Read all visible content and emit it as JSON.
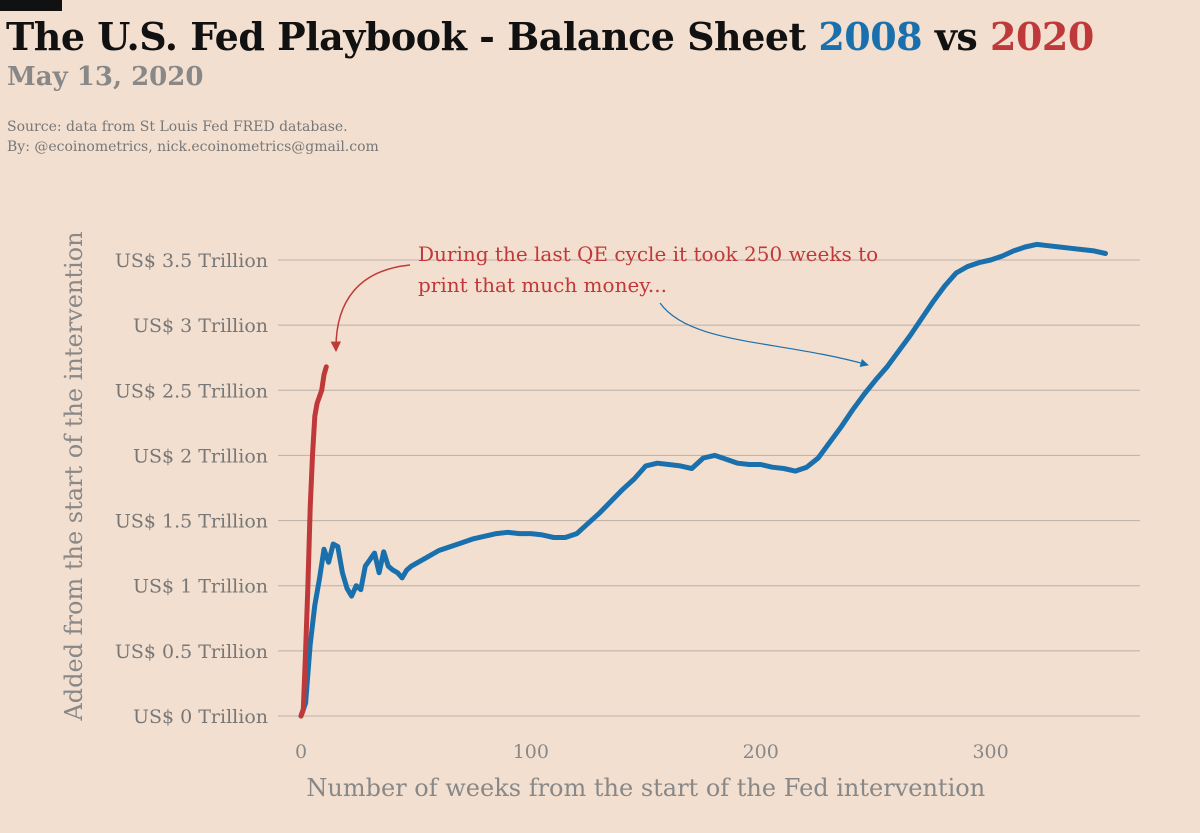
{
  "header": {
    "title_prefix": "The U.S. Fed Playbook - Balance Sheet ",
    "title_year_a": "2008",
    "title_vs": " vs ",
    "title_year_b": "2020",
    "date": "May 13, 2020",
    "source_line1": "Source: data from  St Louis Fed FRED database.",
    "source_line2": "By: @ecoinometrics, nick.ecoinometrics@gmail.com"
  },
  "colors": {
    "series_2008": "#1a70ad",
    "series_2020": "#c0393a",
    "background": "#f3dfcf",
    "gridline": "#b9b0a8"
  },
  "chart_data": {
    "type": "line",
    "title": "The U.S. Fed Playbook - Balance Sheet 2008 vs 2020",
    "xlabel": "Number of weeks from the start of the Fed intervention",
    "ylabel": "Added from the start of the intervention",
    "xlim": [
      -10,
      365
    ],
    "ylim": [
      0,
      3.5
    ],
    "grid": true,
    "x_ticks": [
      0,
      100,
      200,
      300
    ],
    "y_ticks": [
      0,
      0.5,
      1,
      1.5,
      2,
      2.5,
      3,
      3.5
    ],
    "y_tick_labels": [
      "US$ 0 Trillion",
      "US$ 0.5 Trillion",
      "US$ 1 Trillion",
      "US$ 1.5 Trillion",
      "US$ 2 Trillion",
      "US$ 2.5 Trillion",
      "US$ 3 Trillion",
      "US$ 3.5 Trillion"
    ],
    "series": [
      {
        "name": "2008",
        "x": [
          0,
          2,
          4,
          6,
          8,
          10,
          12,
          14,
          16,
          18,
          20,
          22,
          24,
          26,
          28,
          30,
          32,
          34,
          36,
          38,
          40,
          42,
          44,
          46,
          48,
          50,
          55,
          60,
          65,
          70,
          75,
          80,
          85,
          90,
          95,
          100,
          105,
          110,
          115,
          120,
          125,
          130,
          135,
          140,
          145,
          150,
          155,
          160,
          165,
          170,
          175,
          180,
          185,
          190,
          195,
          200,
          205,
          210,
          215,
          220,
          225,
          230,
          235,
          240,
          245,
          250,
          255,
          260,
          265,
          270,
          275,
          280,
          285,
          290,
          295,
          300,
          305,
          310,
          315,
          320,
          325,
          330,
          335,
          340,
          345,
          350
        ],
        "values": [
          0,
          0.1,
          0.55,
          0.85,
          1.05,
          1.28,
          1.18,
          1.32,
          1.3,
          1.1,
          0.98,
          0.92,
          1.0,
          0.97,
          1.15,
          1.2,
          1.25,
          1.1,
          1.26,
          1.15,
          1.12,
          1.1,
          1.06,
          1.12,
          1.15,
          1.17,
          1.22,
          1.27,
          1.3,
          1.33,
          1.36,
          1.38,
          1.4,
          1.41,
          1.4,
          1.4,
          1.39,
          1.37,
          1.37,
          1.4,
          1.48,
          1.56,
          1.65,
          1.74,
          1.82,
          1.92,
          1.94,
          1.93,
          1.92,
          1.9,
          1.98,
          2.0,
          1.97,
          1.94,
          1.93,
          1.93,
          1.91,
          1.9,
          1.88,
          1.91,
          1.98,
          2.1,
          2.22,
          2.35,
          2.47,
          2.58,
          2.68,
          2.8,
          2.92,
          3.05,
          3.18,
          3.3,
          3.4,
          3.45,
          3.48,
          3.5,
          3.53,
          3.57,
          3.6,
          3.62,
          3.61,
          3.6,
          3.59,
          3.58,
          3.57,
          3.55
        ]
      },
      {
        "name": "2020",
        "x": [
          0,
          1,
          2,
          3,
          4,
          5,
          6,
          7,
          8,
          9,
          10,
          11
        ],
        "values": [
          0,
          0.05,
          0.5,
          1.0,
          1.6,
          2.0,
          2.3,
          2.4,
          2.45,
          2.5,
          2.62,
          2.68
        ]
      }
    ],
    "annotations": [
      {
        "text_line1": "During the last QE cycle it took 250 weeks to",
        "text_line2": "print that much money..."
      }
    ]
  }
}
